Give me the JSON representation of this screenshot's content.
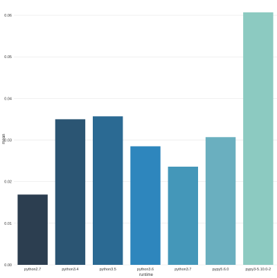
{
  "chart_data": {
    "type": "bar",
    "title": "",
    "xlabel": "runtime",
    "ylabel": "mean",
    "categories": [
      "python2.7",
      "python3.4",
      "python3.5",
      "python3.6",
      "python3.7",
      "pypy5.6.0",
      "pypy3-5.10.0-2"
    ],
    "values": [
      0.0169,
      0.035,
      0.0357,
      0.0285,
      0.0236,
      0.0307,
      0.0607
    ],
    "ylim": [
      0,
      0.062
    ],
    "yticks": [
      0.0,
      0.01,
      0.02,
      0.03,
      0.04,
      0.05,
      0.06
    ],
    "ytick_labels": [
      "0.00",
      "0.01",
      "0.02",
      "0.03",
      "0.04",
      "0.05",
      "0.06"
    ],
    "grid": true,
    "colors": [
      "#2c3e50",
      "#2b5573",
      "#2b6a93",
      "#2e86bd",
      "#4497b9",
      "#6aafbf",
      "#8ccac1"
    ]
  }
}
